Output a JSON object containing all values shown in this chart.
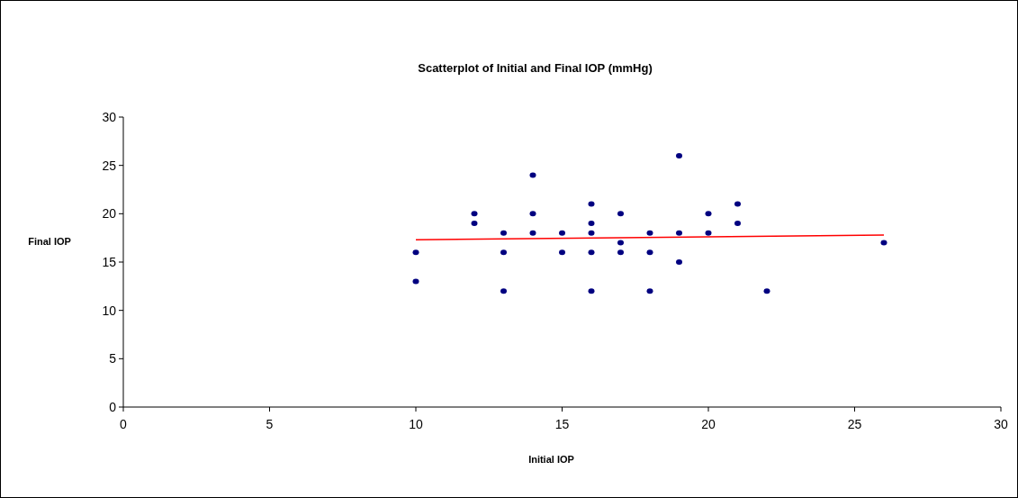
{
  "chart_data": {
    "type": "scatter",
    "title": "Scatterplot of Initial and Final IOP (mmHg)",
    "xlabel": "Initial IOP",
    "ylabel": "Final IOP",
    "xlim": [
      0,
      30
    ],
    "ylim": [
      0,
      30
    ],
    "xticks": [
      0,
      5,
      10,
      15,
      20,
      25,
      30
    ],
    "yticks": [
      0,
      5,
      10,
      15,
      20,
      25,
      30
    ],
    "grid": false,
    "series": [
      {
        "marker": "circle",
        "color": "#000080",
        "x": [
          10,
          10,
          12,
          12,
          13,
          13,
          13,
          14,
          14,
          14,
          15,
          15,
          16,
          16,
          16,
          16,
          16,
          17,
          17,
          17,
          18,
          18,
          18,
          19,
          19,
          19,
          20,
          20,
          21,
          21,
          22,
          26
        ],
        "values": [
          16,
          13,
          20,
          19,
          18,
          16,
          12,
          24,
          20,
          18,
          18,
          16,
          21,
          19,
          18,
          16,
          12,
          20,
          17,
          16,
          18,
          16,
          12,
          26,
          18,
          15,
          20,
          18,
          21,
          19,
          12,
          17
        ]
      },
      {
        "type": "line",
        "marker": "none",
        "color": "#ff0000",
        "x": [
          10,
          26
        ],
        "values": [
          17.3,
          17.8
        ]
      }
    ]
  }
}
